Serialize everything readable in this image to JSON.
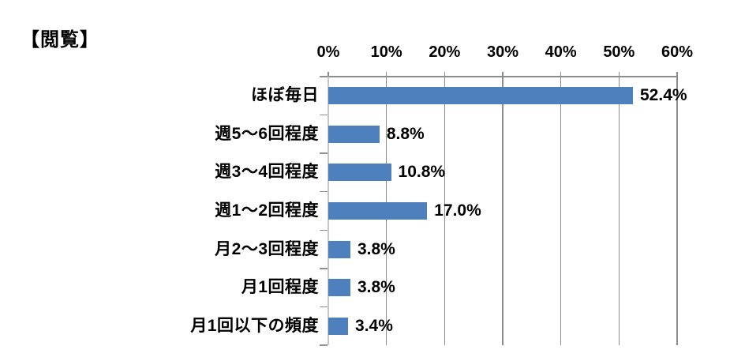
{
  "title": "【閲覧】",
  "chart_data": {
    "type": "bar",
    "orientation": "horizontal",
    "title": "【閲覧】",
    "categories": [
      "ほぼ毎日",
      "週5～6回程度",
      "週3～4回程度",
      "週1～2回程度",
      "月2～3回程度",
      "月1回程度",
      "月1回以下の頻度"
    ],
    "values": [
      52.4,
      8.8,
      10.8,
      17.0,
      3.8,
      3.8,
      3.4
    ],
    "value_labels": [
      "52.4%",
      "8.8%",
      "10.8%",
      "17.0%",
      "3.8%",
      "3.8%",
      "3.4%"
    ],
    "x_tick_labels": [
      "0%",
      "10%",
      "20%",
      "30%",
      "40%",
      "50%",
      "60%"
    ],
    "x_tick_values": [
      0,
      10,
      20,
      30,
      40,
      50,
      60
    ],
    "xlim": [
      0,
      60
    ],
    "axis_position": "top",
    "grid": true,
    "legend": "none",
    "colors": {
      "bar": "#4E80BD",
      "gridline": "#8C8C8C",
      "axis_line": "#8C8C8C",
      "category_axis": "#C6C6C6",
      "row_tick": "#8F8F8F",
      "text": "#000000",
      "background": "#FFFFFF"
    }
  }
}
